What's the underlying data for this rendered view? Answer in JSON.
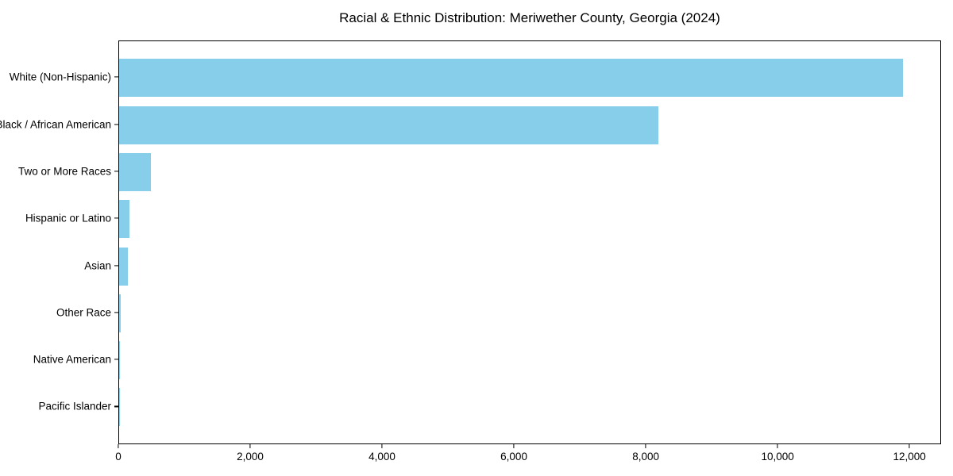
{
  "chart_data": {
    "type": "bar",
    "orientation": "horizontal",
    "title": "Racial & Ethnic Distribution: Meriwether County, Georgia (2024)",
    "categories": [
      "White (Non-Hispanic)",
      "Black / African American",
      "Two or More Races",
      "Hispanic or Latino",
      "Asian",
      "Other Race",
      "Native American",
      "Pacific Islander"
    ],
    "values": [
      11890,
      8180,
      480,
      160,
      135,
      20,
      12,
      5
    ],
    "xlabel": "",
    "ylabel": "",
    "xlim": [
      0,
      12480
    ],
    "x_ticks": [
      0,
      2000,
      4000,
      6000,
      8000,
      10000,
      12000
    ],
    "x_tick_labels": [
      "0",
      "2,000",
      "4,000",
      "6,000",
      "8,000",
      "10,000",
      "12,000"
    ],
    "bar_color": "#87CEEB",
    "background_color": "#ffffff",
    "axis_color": "#000000",
    "grid": false,
    "legend": null
  }
}
